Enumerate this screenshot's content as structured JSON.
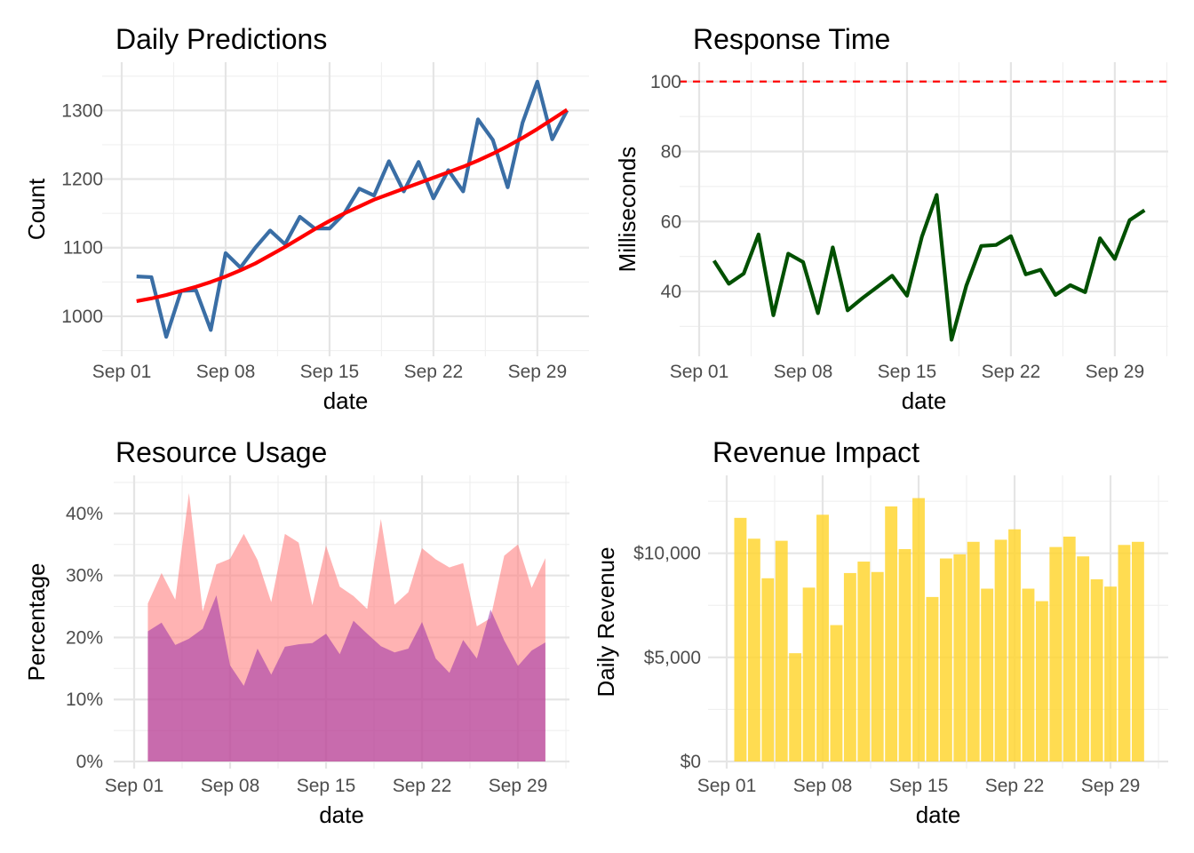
{
  "chart_data": [
    {
      "id": "predictions",
      "type": "line",
      "title": "Daily Predictions",
      "xlabel": "date",
      "ylabel": "Count",
      "x_start": "2024-09-02",
      "xticks": [
        {
          "day": 1,
          "label": "Sep 01"
        },
        {
          "day": 8,
          "label": "Sep 08"
        },
        {
          "day": 15,
          "label": "Sep 15"
        },
        {
          "day": 22,
          "label": "Sep 22"
        },
        {
          "day": 29,
          "label": "Sep 29"
        }
      ],
      "yticks": [
        {
          "value": 1000,
          "label": "1000"
        },
        {
          "value": 1100,
          "label": "1100"
        },
        {
          "value": 1200,
          "label": "1200"
        },
        {
          "value": 1300,
          "label": "1300"
        }
      ],
      "ylim": [
        952,
        1360
      ],
      "series": [
        {
          "type": "line",
          "color": "#3a6ea5",
          "values": [
            1058,
            1057,
            970,
            1037,
            1038,
            980,
            1092,
            1071,
            1100,
            1125,
            1105,
            1145,
            1128,
            1128,
            1150,
            1186,
            1176,
            1226,
            1182,
            1225,
            1172,
            1213,
            1182,
            1287,
            1257,
            1188,
            1282,
            1342,
            1258,
            1300
          ]
        },
        {
          "type": "line",
          "color": "#ff0000",
          "values": [
            1022,
            1026,
            1031,
            1037,
            1043,
            1050,
            1058,
            1067,
            1077,
            1089,
            1101,
            1114,
            1127,
            1139,
            1150,
            1160,
            1170,
            1178,
            1186,
            1194,
            1202,
            1210,
            1218,
            1227,
            1237,
            1248,
            1260,
            1273,
            1287,
            1301
          ]
        }
      ]
    },
    {
      "id": "response",
      "type": "line",
      "title": "Response Time",
      "xlabel": "date",
      "ylabel": "Milliseconds",
      "x_start": "2024-09-02",
      "xticks": [
        {
          "day": 1,
          "label": "Sep 01"
        },
        {
          "day": 8,
          "label": "Sep 08"
        },
        {
          "day": 15,
          "label": "Sep 15"
        },
        {
          "day": 22,
          "label": "Sep 22"
        },
        {
          "day": 29,
          "label": "Sep 29"
        }
      ],
      "yticks": [
        {
          "value": 40,
          "label": "40"
        },
        {
          "value": 60,
          "label": "60"
        },
        {
          "value": 80,
          "label": "80"
        },
        {
          "value": 100,
          "label": "100"
        }
      ],
      "ylim": [
        23.5,
        103.5
      ],
      "reference_line": {
        "value": 100,
        "color": "#ff0000",
        "style": "dashed"
      },
      "series": [
        {
          "type": "line",
          "color": "#005000",
          "values": [
            48.8,
            42.2,
            45.1,
            56.3,
            33.2,
            50.8,
            48.4,
            33.8,
            52.6,
            34.6,
            38.1,
            41.3,
            44.5,
            38.8,
            55.6,
            67.6,
            26.2,
            41.7,
            53,
            53.3,
            55.8,
            44.9,
            46.2,
            39,
            41.8,
            39.8,
            55.2,
            49.3,
            60.4,
            63.2
          ]
        }
      ]
    },
    {
      "id": "resources",
      "type": "area",
      "title": "Resource Usage",
      "xlabel": "date",
      "ylabel": "Percentage",
      "x_start": "2024-09-02",
      "xticks": [
        {
          "day": 1,
          "label": "Sep 01"
        },
        {
          "day": 8,
          "label": "Sep 08"
        },
        {
          "day": 15,
          "label": "Sep 15"
        },
        {
          "day": 22,
          "label": "Sep 22"
        },
        {
          "day": 29,
          "label": "Sep 29"
        }
      ],
      "yticks": [
        {
          "value": 0,
          "label": "0%"
        },
        {
          "value": 10,
          "label": "10%"
        },
        {
          "value": 20,
          "label": "20%"
        },
        {
          "value": 30,
          "label": "30%"
        },
        {
          "value": 40,
          "label": "40%"
        }
      ],
      "ylim": [
        0,
        45
      ],
      "series": [
        {
          "type": "area",
          "color": "#ff8080",
          "opacity": 0.6,
          "values": [
            25.5,
            30.4,
            26.1,
            43.3,
            24.2,
            31.8,
            32.7,
            36.7,
            32.5,
            25.7,
            36.7,
            35.3,
            25.2,
            34.8,
            28.2,
            26.7,
            24.6,
            39.1,
            25.3,
            27.3,
            34.4,
            32.6,
            31.3,
            32,
            21.8,
            23.1,
            33.2,
            35,
            28,
            32.8
          ]
        },
        {
          "type": "area",
          "color": "#9b30a8",
          "opacity": 0.55,
          "values": [
            21,
            22.4,
            18.8,
            19.8,
            21.4,
            26.8,
            15.5,
            12.2,
            18.2,
            14,
            18.5,
            18.9,
            19.1,
            20.6,
            17.3,
            22.7,
            20.6,
            18.6,
            17.6,
            18.2,
            22.5,
            16.6,
            14.3,
            19.6,
            16.6,
            24.5,
            19.5,
            15.4,
            17.9,
            19.2
          ]
        }
      ]
    },
    {
      "id": "revenue",
      "type": "bar",
      "title": "Revenue Impact",
      "xlabel": "date",
      "ylabel": "Daily Revenue",
      "x_start": "2024-09-02",
      "xticks": [
        {
          "day": 1,
          "label": "Sep 01"
        },
        {
          "day": 8,
          "label": "Sep 08"
        },
        {
          "day": 15,
          "label": "Sep 15"
        },
        {
          "day": 22,
          "label": "Sep 22"
        },
        {
          "day": 29,
          "label": "Sep 29"
        }
      ],
      "yticks": [
        {
          "value": 0,
          "label": "$0"
        },
        {
          "value": 5000,
          "label": "$5,000"
        },
        {
          "value": 10000,
          "label": "$10,000"
        }
      ],
      "ylim": [
        0,
        13400
      ],
      "series": [
        {
          "type": "bar",
          "color": "#ffd633",
          "values": [
            11700,
            10700,
            8800,
            10600,
            5200,
            8350,
            11850,
            6550,
            9050,
            9600,
            9100,
            12250,
            10200,
            12650,
            7900,
            9750,
            9950,
            10550,
            8300,
            10650,
            11150,
            8300,
            7700,
            10300,
            10800,
            9850,
            8750,
            8400,
            10400,
            10550
          ]
        }
      ]
    }
  ]
}
